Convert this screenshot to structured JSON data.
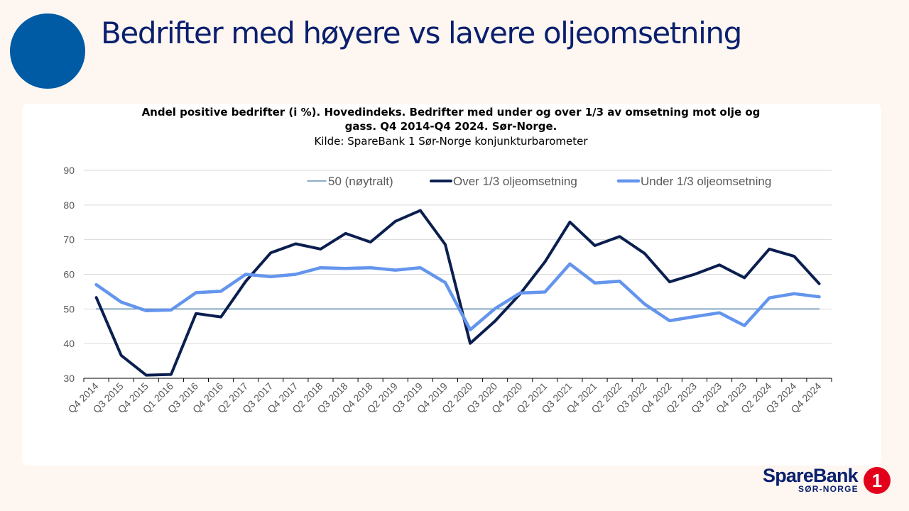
{
  "slide": {
    "title": "Bedrifter med høyere vs lavere oljeomsetning"
  },
  "logo": {
    "wordmark": "SpareBank",
    "sub": "SØR-NORGE",
    "badge": "1"
  },
  "colors": {
    "accent_circle": "#005aa4",
    "title": "#0a1f6e",
    "neutral_line": "#4a7ea8",
    "over_series": "#0b1f4f",
    "under_series": "#6495ed",
    "badge": "#e3001b"
  },
  "chart_data": {
    "type": "line",
    "title": "Andel positive bedrifter (i %). Hovedindeks. Bedrifter med under og over 1/3 av omsetning mot olje og gass. Q4 2014-Q4 2024. Sør-Norge.",
    "subtitle": "Kilde: SpareBank 1 Sør-Norge konjunkturbarometer",
    "xlabel": "",
    "ylabel": "",
    "ylim": [
      30,
      90
    ],
    "yticks": [
      30,
      40,
      50,
      60,
      70,
      80,
      90
    ],
    "grid": true,
    "legend_position": "top",
    "categories": [
      "Q4 2014",
      "Q3 2015",
      "Q4 2015",
      "Q1 2016",
      "Q3 2016",
      "Q4 2016",
      "Q2 2017",
      "Q3 2017",
      "Q4 2017",
      "Q2 2018",
      "Q3 2018",
      "Q4 2018",
      "Q2 2019",
      "Q3 2019",
      "Q4 2019",
      "Q2 2020",
      "Q3 2020",
      "Q4 2020",
      "Q2 2021",
      "Q3 2021",
      "Q4 2021",
      "Q2 2022",
      "Q3 2022",
      "Q4 2022",
      "Q2 2023",
      "Q3 2023",
      "Q4 2023",
      "Q2 2024",
      "Q3 2024",
      "Q4 2024"
    ],
    "series": [
      {
        "name": "50 (nøytralt)",
        "values": [
          50,
          50,
          50,
          50,
          50,
          50,
          50,
          50,
          50,
          50,
          50,
          50,
          50,
          50,
          50,
          50,
          50,
          50,
          50,
          50,
          50,
          50,
          50,
          50,
          50,
          50,
          50,
          50,
          50,
          50
        ]
      },
      {
        "name": "Over 1/3 oljeomsetning",
        "values": [
          53.3,
          36.6,
          30.9,
          31.1,
          48.7,
          47.7,
          58.0,
          66.2,
          68.8,
          67.3,
          71.8,
          69.3,
          75.3,
          78.4,
          68.6,
          40.1,
          46.5,
          54.3,
          63.6,
          75.1,
          68.3,
          70.9,
          66.0,
          57.8,
          60.0,
          62.7,
          59.0,
          67.3,
          65.2,
          57.3
        ]
      },
      {
        "name": "Under 1/3 oljeomsetning",
        "values": [
          57.0,
          52.0,
          49.5,
          49.7,
          54.7,
          55.1,
          60.0,
          59.3,
          60.0,
          61.9,
          61.7,
          61.9,
          61.2,
          61.9,
          57.6,
          44.0,
          50.1,
          54.6,
          54.9,
          63.0,
          57.5,
          58.0,
          51.4,
          46.6,
          47.8,
          48.9,
          45.2,
          53.2,
          54.4,
          53.5
        ]
      }
    ]
  }
}
